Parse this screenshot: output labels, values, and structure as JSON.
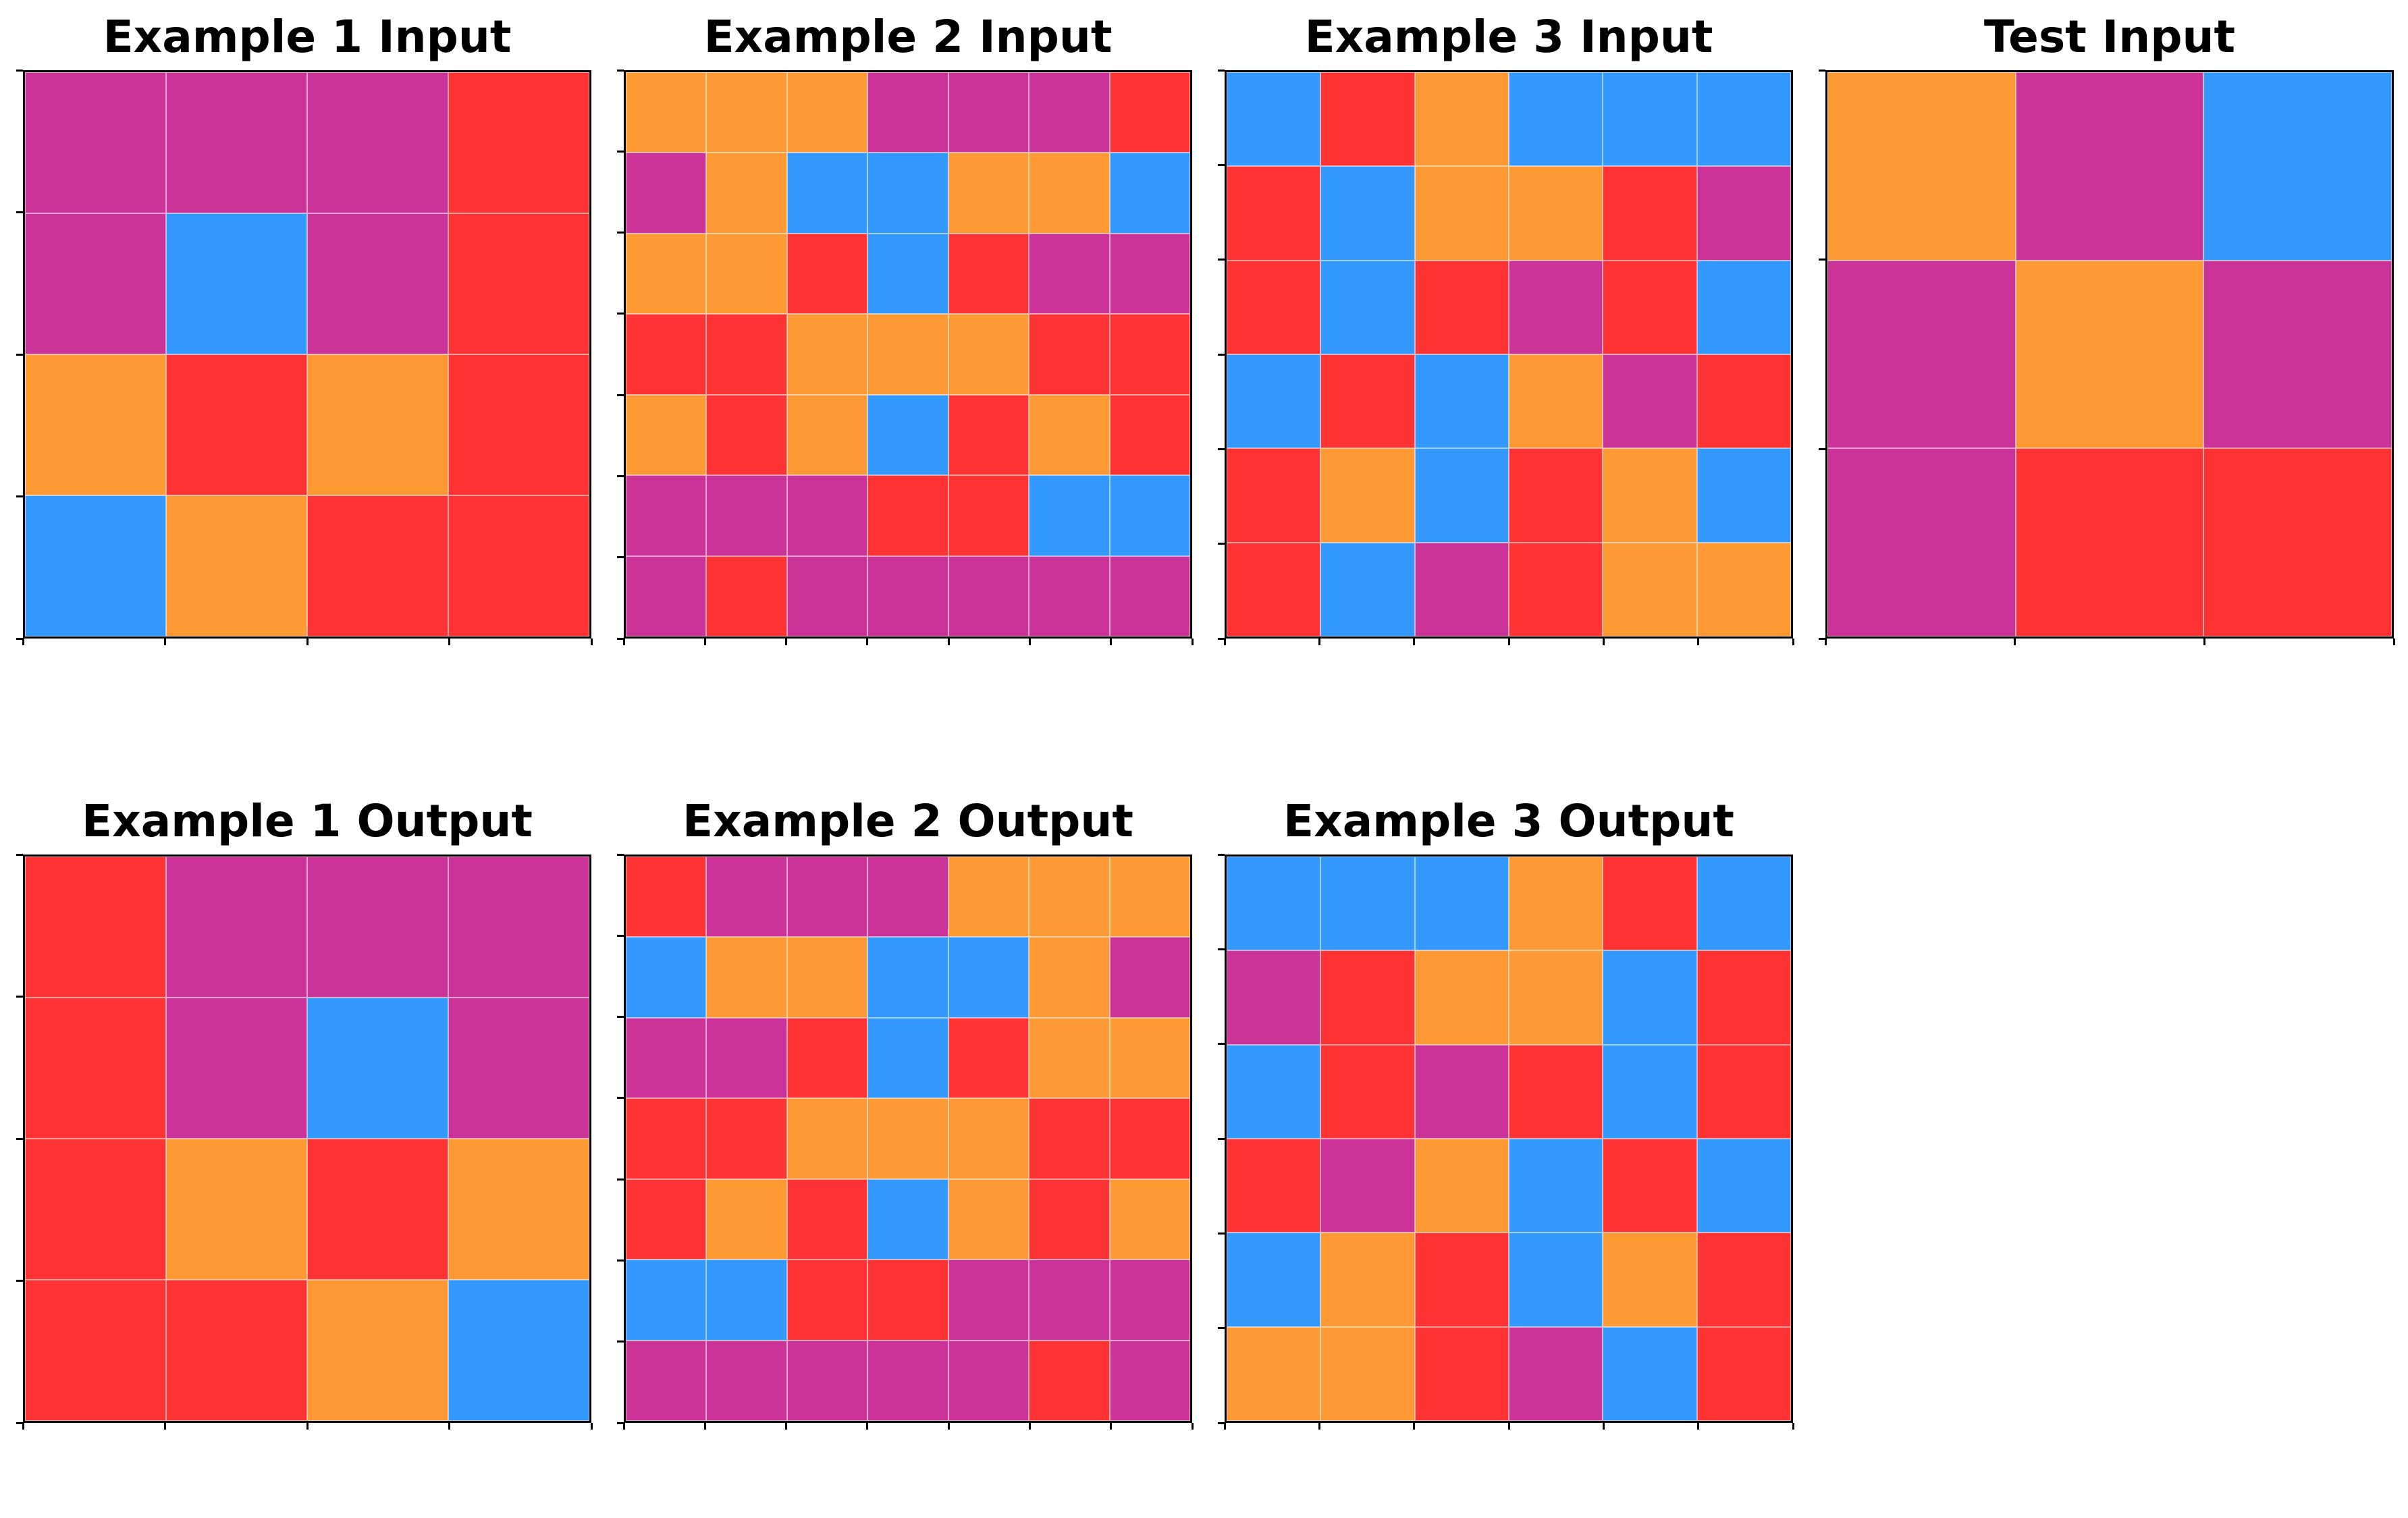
{
  "palette": {
    "R": "#ff3333",
    "M": "#cc3399",
    "O": "#ff9933",
    "B": "#3399ff"
  },
  "panels": [
    {
      "id": "example-1-input",
      "title": "Example 1 Input",
      "grid": [
        [
          "M",
          "M",
          "M",
          "R"
        ],
        [
          "M",
          "B",
          "M",
          "R"
        ],
        [
          "O",
          "R",
          "O",
          "R"
        ],
        [
          "B",
          "O",
          "R",
          "R"
        ]
      ]
    },
    {
      "id": "example-2-input",
      "title": "Example 2 Input",
      "grid": [
        [
          "O",
          "O",
          "O",
          "M",
          "M",
          "M",
          "R"
        ],
        [
          "M",
          "O",
          "B",
          "B",
          "O",
          "O",
          "B"
        ],
        [
          "O",
          "O",
          "R",
          "B",
          "R",
          "M",
          "M"
        ],
        [
          "R",
          "R",
          "O",
          "O",
          "O",
          "R",
          "R"
        ],
        [
          "O",
          "R",
          "O",
          "B",
          "R",
          "O",
          "R"
        ],
        [
          "M",
          "M",
          "M",
          "R",
          "R",
          "B",
          "B"
        ],
        [
          "M",
          "R",
          "M",
          "M",
          "M",
          "M",
          "M"
        ]
      ]
    },
    {
      "id": "example-3-input",
      "title": "Example 3 Input",
      "grid": [
        [
          "B",
          "R",
          "O",
          "B",
          "B",
          "B"
        ],
        [
          "R",
          "B",
          "O",
          "O",
          "R",
          "M"
        ],
        [
          "R",
          "B",
          "R",
          "M",
          "R",
          "B"
        ],
        [
          "B",
          "R",
          "B",
          "O",
          "M",
          "R"
        ],
        [
          "R",
          "O",
          "B",
          "R",
          "O",
          "B"
        ],
        [
          "R",
          "B",
          "M",
          "R",
          "O",
          "O"
        ]
      ]
    },
    {
      "id": "test-input",
      "title": "Test Input",
      "grid": [
        [
          "O",
          "M",
          "B"
        ],
        [
          "M",
          "O",
          "M"
        ],
        [
          "M",
          "R",
          "R"
        ]
      ]
    },
    {
      "id": "example-1-output",
      "title": "Example 1 Output",
      "grid": [
        [
          "R",
          "M",
          "M",
          "M"
        ],
        [
          "R",
          "M",
          "B",
          "M"
        ],
        [
          "R",
          "O",
          "R",
          "O"
        ],
        [
          "R",
          "R",
          "O",
          "B"
        ]
      ]
    },
    {
      "id": "example-2-output",
      "title": "Example 2 Output",
      "grid": [
        [
          "R",
          "M",
          "M",
          "M",
          "O",
          "O",
          "O"
        ],
        [
          "B",
          "O",
          "O",
          "B",
          "B",
          "O",
          "M"
        ],
        [
          "M",
          "M",
          "R",
          "B",
          "R",
          "O",
          "O"
        ],
        [
          "R",
          "R",
          "O",
          "O",
          "O",
          "R",
          "R"
        ],
        [
          "R",
          "O",
          "R",
          "B",
          "O",
          "R",
          "O"
        ],
        [
          "B",
          "B",
          "R",
          "R",
          "M",
          "M",
          "M"
        ],
        [
          "M",
          "M",
          "M",
          "M",
          "M",
          "R",
          "M"
        ]
      ]
    },
    {
      "id": "example-3-output",
      "title": "Example 3 Output",
      "grid": [
        [
          "B",
          "B",
          "B",
          "O",
          "R",
          "B"
        ],
        [
          "M",
          "R",
          "O",
          "O",
          "B",
          "R"
        ],
        [
          "B",
          "R",
          "M",
          "R",
          "B",
          "R"
        ],
        [
          "R",
          "M",
          "O",
          "B",
          "R",
          "B"
        ],
        [
          "B",
          "O",
          "R",
          "B",
          "O",
          "R"
        ],
        [
          "O",
          "O",
          "R",
          "M",
          "B",
          "R"
        ]
      ]
    }
  ]
}
